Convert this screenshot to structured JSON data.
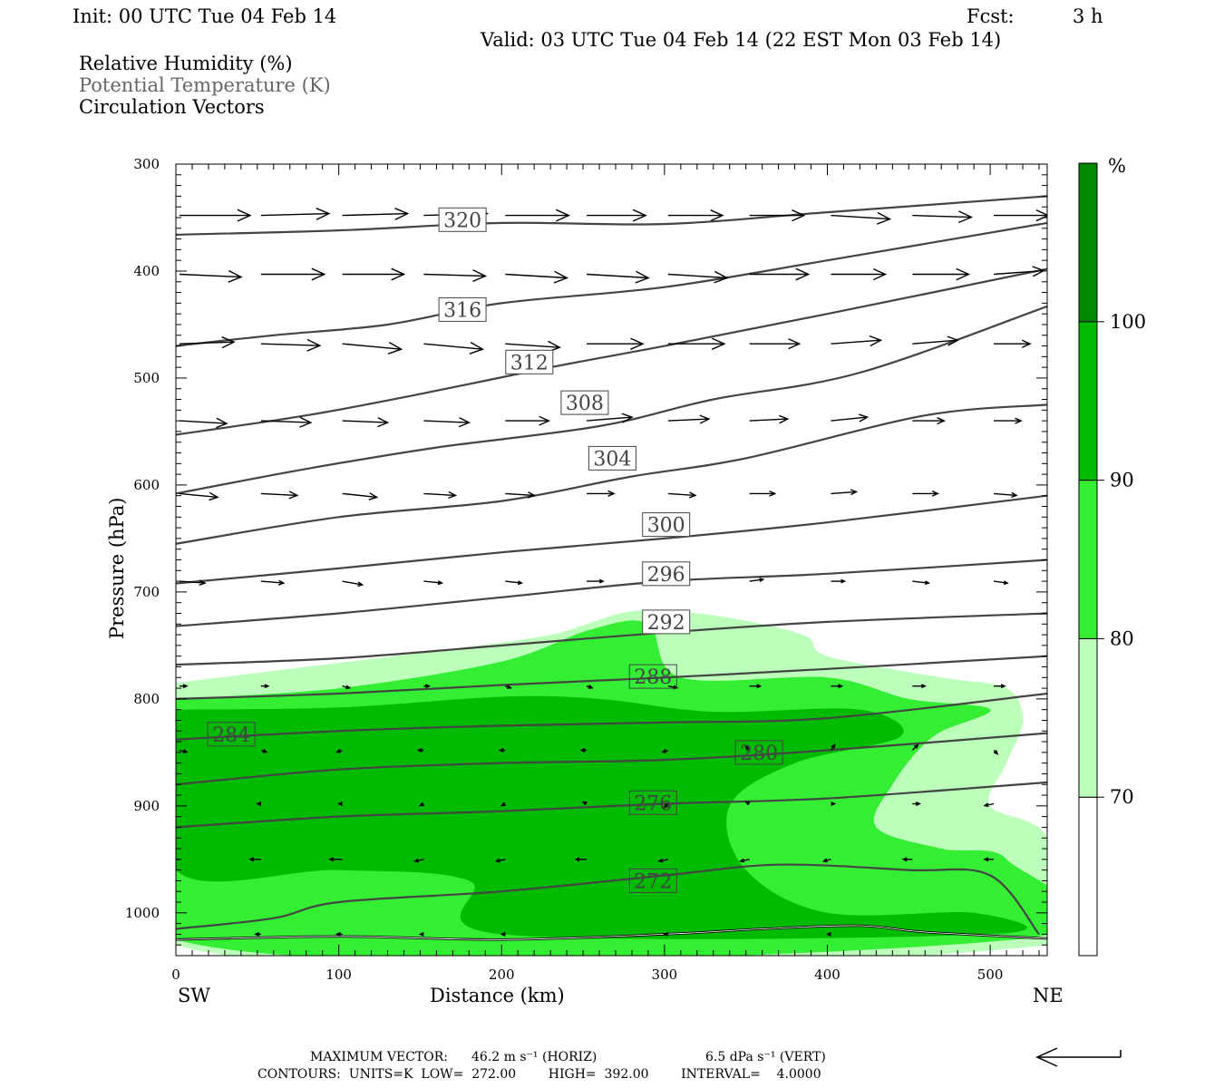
{
  "header": {
    "init": "Init: 00 UTC Tue 04 Feb 14",
    "fcst_label": "Fcst:",
    "fcst_value": "3 h",
    "valid": "Valid: 03 UTC Tue 04 Feb 14 (22 EST Mon 03 Feb 14)",
    "field1": "Relative Humidity (%)",
    "field2": "Potential Temperature (K)",
    "field3": "Circulation Vectors"
  },
  "footer": {
    "max_vector_label": "MAXIMUM VECTOR:",
    "max_vector_horiz": "46.2 m s⁻¹ (HORIZ)",
    "max_vector_vert": "6.5 dPa s⁻¹ (VERT)",
    "contours": "CONTOURS:  UNITS=K  LOW=  272.00        HIGH=  392.00        INTERVAL=    4.0000"
  },
  "chart_data": {
    "type": "cross-section",
    "xlabel": "Distance (km)",
    "ylabel": "Pressure (hPa)",
    "x_left_label": "SW",
    "x_right_label": "NE",
    "xlim": [
      0,
      535
    ],
    "ylim": [
      1040,
      300
    ],
    "xticks": [
      0,
      100,
      200,
      300,
      400,
      500
    ],
    "yticks": [
      300,
      400,
      500,
      600,
      700,
      800,
      900,
      1000
    ],
    "colorbar": {
      "unit": "%",
      "levels": [
        70,
        80,
        90,
        100
      ],
      "colors": [
        "#ffffff",
        "#bbffbb",
        "#33ee33",
        "#00bb00",
        "#008800"
      ]
    },
    "theta_labels": [
      {
        "value": "320",
        "x": 176,
        "p": 352
      },
      {
        "value": "316",
        "x": 176,
        "p": 436
      },
      {
        "value": "312",
        "x": 217,
        "p": 485
      },
      {
        "value": "308",
        "x": 251,
        "p": 523
      },
      {
        "value": "304",
        "x": 268,
        "p": 575
      },
      {
        "value": "300",
        "x": 301,
        "p": 637
      },
      {
        "value": "296",
        "x": 301,
        "p": 683
      },
      {
        "value": "292",
        "x": 301,
        "p": 728
      },
      {
        "value": "288",
        "x": 293,
        "p": 779
      },
      {
        "value": "284",
        "x": 34,
        "p": 833
      },
      {
        "value": "280",
        "x": 358,
        "p": 850
      },
      {
        "value": "276",
        "x": 293,
        "p": 897
      },
      {
        "value": "272",
        "x": 293,
        "p": 970
      }
    ],
    "theta_contours": [
      [
        [
          0,
          366
        ],
        [
          100,
          362
        ],
        [
          200,
          355
        ],
        [
          300,
          356
        ],
        [
          400,
          345
        ],
        [
          535,
          330
        ]
      ],
      [
        [
          0,
          470
        ],
        [
          60,
          460
        ],
        [
          130,
          450
        ],
        [
          200,
          430
        ],
        [
          300,
          415
        ],
        [
          400,
          390
        ],
        [
          535,
          355
        ]
      ],
      [
        [
          0,
          553
        ],
        [
          80,
          535
        ],
        [
          150,
          515
        ],
        [
          230,
          490
        ],
        [
          300,
          470
        ],
        [
          400,
          440
        ],
        [
          535,
          398
        ]
      ],
      [
        [
          0,
          608
        ],
        [
          80,
          585
        ],
        [
          160,
          565
        ],
        [
          260,
          545
        ],
        [
          330,
          520
        ],
        [
          420,
          495
        ],
        [
          535,
          433
        ]
      ],
      [
        [
          0,
          655
        ],
        [
          100,
          630
        ],
        [
          200,
          615
        ],
        [
          280,
          592
        ],
        [
          350,
          575
        ],
        [
          460,
          535
        ],
        [
          535,
          525
        ]
      ],
      [
        [
          0,
          692
        ],
        [
          100,
          678
        ],
        [
          200,
          663
        ],
        [
          300,
          650
        ],
        [
          400,
          635
        ],
        [
          535,
          610
        ]
      ],
      [
        [
          0,
          732
        ],
        [
          100,
          720
        ],
        [
          200,
          705
        ],
        [
          300,
          690
        ],
        [
          400,
          683
        ],
        [
          535,
          670
        ]
      ],
      [
        [
          0,
          768
        ],
        [
          100,
          762
        ],
        [
          200,
          750
        ],
        [
          300,
          738
        ],
        [
          400,
          728
        ],
        [
          535,
          720
        ]
      ],
      [
        [
          0,
          800
        ],
        [
          100,
          795
        ],
        [
          200,
          787
        ],
        [
          300,
          780
        ],
        [
          400,
          772
        ],
        [
          535,
          760
        ]
      ],
      [
        [
          0,
          838
        ],
        [
          100,
          830
        ],
        [
          200,
          825
        ],
        [
          300,
          822
        ],
        [
          400,
          818
        ],
        [
          535,
          795
        ]
      ],
      [
        [
          0,
          880
        ],
        [
          100,
          866
        ],
        [
          200,
          860
        ],
        [
          300,
          857
        ],
        [
          400,
          848
        ],
        [
          535,
          832
        ]
      ],
      [
        [
          0,
          920
        ],
        [
          100,
          910
        ],
        [
          200,
          905
        ],
        [
          300,
          898
        ],
        [
          400,
          893
        ],
        [
          535,
          878
        ]
      ],
      [
        [
          0,
          1015
        ],
        [
          60,
          1005
        ],
        [
          100,
          990
        ],
        [
          200,
          980
        ],
        [
          300,
          965
        ],
        [
          370,
          955
        ],
        [
          450,
          960
        ],
        [
          500,
          965
        ],
        [
          530,
          1020
        ]
      ]
    ],
    "surface_pressure": [
      [
        0,
        1025
      ],
      [
        100,
        1022
      ],
      [
        200,
        1025
      ],
      [
        300,
        1020
      ],
      [
        360,
        1015
      ],
      [
        420,
        1012
      ],
      [
        460,
        1018
      ],
      [
        535,
        1024
      ]
    ],
    "rh_regions": [
      {
        "level": 70,
        "points": [
          [
            0,
            785
          ],
          [
            80,
            770
          ],
          [
            160,
            755
          ],
          [
            230,
            740
          ],
          [
            280,
            718
          ],
          [
            330,
            722
          ],
          [
            385,
            740
          ],
          [
            400,
            760
          ],
          [
            470,
            780
          ],
          [
            510,
            790
          ],
          [
            520,
            820
          ],
          [
            510,
            860
          ],
          [
            500,
            900
          ],
          [
            535,
            930
          ],
          [
            535,
            1030
          ],
          [
            0,
            1030
          ]
        ]
      },
      {
        "level": 80,
        "points": [
          [
            0,
            800
          ],
          [
            100,
            790
          ],
          [
            200,
            765
          ],
          [
            255,
            735
          ],
          [
            290,
            730
          ],
          [
            310,
            780
          ],
          [
            400,
            780
          ],
          [
            450,
            800
          ],
          [
            500,
            810
          ],
          [
            465,
            835
          ],
          [
            440,
            880
          ],
          [
            430,
            920
          ],
          [
            470,
            940
          ],
          [
            510,
            950
          ],
          [
            515,
            1025
          ],
          [
            0,
            1025
          ]
        ]
      },
      {
        "level": 90,
        "points": [
          [
            0,
            810
          ],
          [
            100,
            808
          ],
          [
            200,
            798
          ],
          [
            260,
            800
          ],
          [
            330,
            812
          ],
          [
            420,
            810
          ],
          [
            445,
            835
          ],
          [
            380,
            860
          ],
          [
            340,
            900
          ],
          [
            350,
            960
          ],
          [
            400,
            1000
          ],
          [
            490,
            1000
          ],
          [
            500,
            1020
          ],
          [
            200,
            1020
          ],
          [
            180,
            970
          ],
          [
            100,
            960
          ],
          [
            0,
            960
          ]
        ]
      }
    ],
    "vectors": [
      {
        "p": 348,
        "x": [
          0,
          50,
          100,
          150,
          200,
          250,
          300,
          350,
          400,
          450,
          500
        ],
        "dx": [
          78,
          75,
          72,
          70,
          70,
          65,
          60,
          60,
          65,
          65,
          60
        ],
        "dy": [
          0,
          -2,
          -2,
          -2,
          0,
          0,
          0,
          0,
          4,
          2,
          0
        ]
      },
      {
        "p": 403,
        "x": [
          0,
          50,
          100,
          150,
          200,
          250,
          300,
          350,
          400,
          450,
          500
        ],
        "dx": [
          68,
          70,
          68,
          68,
          68,
          68,
          65,
          65,
          60,
          62,
          55
        ],
        "dy": [
          3,
          0,
          0,
          2,
          4,
          4,
          4,
          0,
          0,
          0,
          -4
        ]
      },
      {
        "p": 468,
        "x": [
          0,
          50,
          100,
          150,
          200,
          250,
          300,
          350,
          400,
          450,
          500
        ],
        "dx": [
          60,
          65,
          65,
          65,
          60,
          62,
          62,
          55,
          55,
          50,
          40
        ],
        "dy": [
          -2,
          2,
          6,
          6,
          4,
          0,
          0,
          0,
          -4,
          -4,
          0
        ]
      },
      {
        "p": 540,
        "x": [
          0,
          50,
          100,
          150,
          200,
          250,
          300,
          350,
          400,
          450,
          500
        ],
        "dx": [
          52,
          55,
          50,
          50,
          48,
          50,
          45,
          42,
          40,
          35,
          30
        ],
        "dy": [
          3,
          2,
          2,
          2,
          0,
          -4,
          -2,
          -2,
          -4,
          0,
          0
        ]
      },
      {
        "p": 608,
        "x": [
          0,
          50,
          100,
          150,
          200,
          250,
          300,
          350,
          400,
          450,
          500
        ],
        "dx": [
          42,
          40,
          38,
          35,
          32,
          30,
          30,
          28,
          28,
          28,
          25
        ],
        "dy": [
          4,
          2,
          4,
          2,
          2,
          0,
          2,
          0,
          -2,
          0,
          2
        ]
      },
      {
        "p": 690,
        "x": [
          0,
          50,
          100,
          150,
          200,
          250,
          300,
          350,
          400,
          450,
          500
        ],
        "dx": [
          28,
          25,
          22,
          20,
          18,
          18,
          15,
          15,
          15,
          18,
          15
        ],
        "dy": [
          2,
          2,
          4,
          2,
          2,
          0,
          0,
          -2,
          0,
          2,
          2
        ]
      },
      {
        "p": 788,
        "x": [
          0,
          50,
          100,
          150,
          200,
          250,
          300,
          350,
          400,
          450,
          500
        ],
        "dx": [
          8,
          8,
          8,
          6,
          6,
          6,
          10,
          12,
          12,
          14,
          12
        ],
        "dy": [
          0,
          0,
          2,
          0,
          2,
          2,
          2,
          0,
          0,
          0,
          0
        ]
      },
      {
        "p": 848,
        "x": [
          0,
          50,
          100,
          150,
          200,
          250,
          300,
          350,
          400,
          450,
          500
        ],
        "dx": [
          8,
          6,
          -6,
          -6,
          -6,
          -6,
          -6,
          -4,
          4,
          6,
          4
        ],
        "dy": [
          2,
          2,
          2,
          0,
          0,
          0,
          2,
          -4,
          -6,
          -6,
          4
        ]
      },
      {
        "p": 898,
        "x": [
          50,
          100,
          150,
          200,
          250,
          300,
          350,
          400,
          450,
          500
        ],
        "dx": [
          -4,
          -4,
          -4,
          -4,
          -4,
          -4,
          -4,
          4,
          8,
          -10
        ],
        "dy": [
          0,
          0,
          2,
          2,
          -2,
          4,
          -2,
          0,
          0,
          2
        ]
      },
      {
        "p": 950,
        "x": [
          0,
          50,
          100,
          150,
          200,
          250,
          300,
          350,
          400,
          450,
          500
        ],
        "dx": [
          -12,
          -12,
          -14,
          -10,
          -10,
          -12,
          -10,
          -10,
          -8,
          -10,
          -10
        ],
        "dy": [
          0,
          0,
          0,
          2,
          2,
          0,
          2,
          2,
          2,
          0,
          0
        ]
      },
      {
        "p": 1020,
        "x": [
          50,
          100,
          150,
          200,
          300,
          400
        ],
        "dx": [
          -6,
          -6,
          -4,
          -4,
          -4,
          -4
        ],
        "dy": [
          0,
          0,
          0,
          0,
          0,
          0
        ]
      }
    ]
  }
}
